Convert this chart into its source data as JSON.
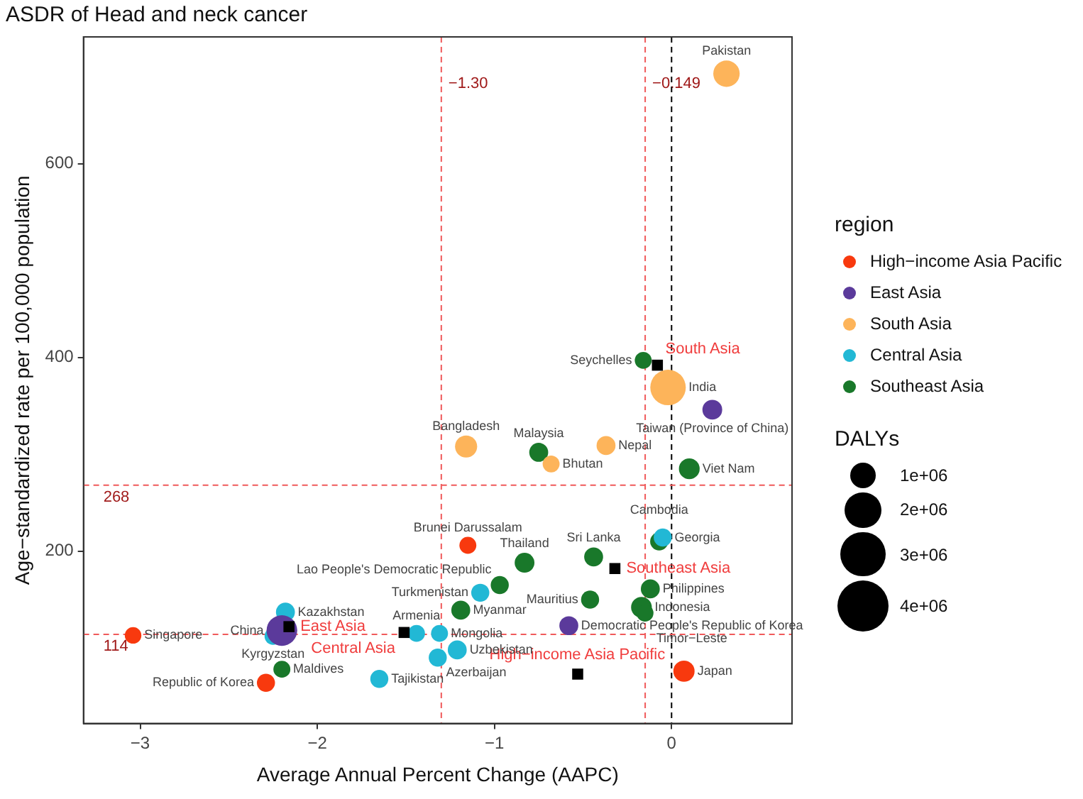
{
  "chart_data": {
    "type": "bubble",
    "title": "ASDR of Head and neck cancer",
    "xlabel": "Average Annual Percent Change (AAPC)",
    "ylabel": "Age−standardized rate per 100,000 population",
    "legend_title": "region",
    "legend": "right",
    "xlim": [
      -3.32,
      0.68
    ],
    "xticks": [
      {
        "value": -3,
        "label": "−3"
      },
      {
        "value": -2,
        "label": "−2"
      },
      {
        "value": -1,
        "label": "−1"
      },
      0
    ],
    "ylim": [
      22,
      731
    ],
    "yticks": [
      200,
      400,
      600
    ],
    "size_legend": [
      {
        "value": 1000000,
        "label": "1e+06"
      },
      {
        "value": 2000000,
        "label": "2e+06"
      },
      {
        "value": 3000000,
        "label": "3e+06"
      },
      {
        "value": 4000000,
        "label": "4e+06"
      }
    ],
    "annotations": [
      "DALYs"
    ],
    "ref_lines": [
      {
        "axis": "x",
        "value": -1.3,
        "label": "−1.30",
        "color": "#f0595a",
        "line_style": "dashed"
      },
      {
        "axis": "x",
        "value": -0.149,
        "label": "−0.149",
        "color": "#f0595a",
        "line_style": "dashed"
      },
      {
        "axis": "x",
        "value": 0,
        "label": null,
        "color": "#000000",
        "line_style": "dashed"
      },
      {
        "axis": "y",
        "value": 268,
        "label": "268",
        "color": "#f0595a",
        "line_style": "dashed"
      },
      {
        "axis": "y",
        "value": 114,
        "label": "114",
        "color": "#f0595a",
        "line_style": "dashed"
      }
    ],
    "series": [
      {
        "name": "High−income Asia Pacific",
        "color": "#f8390e",
        "x": [
          -3.04,
          -2.29,
          -1.15,
          0.07
        ],
        "values": [
          113,
          64,
          206,
          76
        ],
        "sizes": [
          420000,
          500000,
          440000,
          690000
        ],
        "value_labels": [
          "Singapore",
          "Republic of Korea",
          "Brunei Darussalam",
          "Japan"
        ]
      },
      {
        "name": "East Asia",
        "color": "#5b3a9b",
        "x": [
          -2.2,
          -0.58,
          0.23
        ],
        "values": [
          118,
          123,
          346
        ],
        "sizes": [
          1440000,
          550000,
          600000
        ],
        "value_labels": [
          "China",
          "Democratic People's Republic of Korea",
          "Taiwan (Province of China)"
        ]
      },
      {
        "name": "South Asia",
        "color": "#fdb45a",
        "x": [
          0.31,
          -0.02,
          -1.16,
          -0.37,
          -0.68
        ],
        "values": [
          693,
          369,
          308,
          309,
          290
        ],
        "sizes": [
          1070000,
          1930000,
          750000,
          550000,
          440000
        ],
        "value_labels": [
          "Pakistan",
          "India",
          "Bangladesh",
          "Nepal",
          "Bhutan"
        ]
      },
      {
        "name": "Central Asia",
        "color": "#22b8d5",
        "x": [
          -2.18,
          -2.25,
          -1.65,
          -1.44,
          -1.31,
          -1.32,
          -1.21,
          -1.08,
          -0.05
        ],
        "values": [
          137,
          112,
          68,
          115,
          115,
          90,
          98,
          157,
          214
        ],
        "sizes": [
          550000,
          440000,
          500000,
          440000,
          440000,
          500000,
          550000,
          500000,
          500000
        ],
        "value_labels": [
          "Kazakhstan",
          "Kyrgyzstan",
          "Tajikistan",
          "Armenia",
          "Mongolia",
          "Azerbaijan",
          "Uzbekistan",
          "Turkmenistan",
          "Georgia"
        ]
      },
      {
        "name": "Southeast Asia",
        "color": "#19782a",
        "x": [
          -0.16,
          0.1,
          -0.75,
          -0.83,
          -0.97,
          -1.19,
          -2.2,
          -0.44,
          -0.07,
          -0.12,
          -0.46,
          -0.17,
          -0.15
        ],
        "values": [
          397,
          285,
          302,
          188,
          165,
          139,
          78,
          194,
          210,
          161,
          150,
          142,
          136
        ],
        "sizes": [
          440000,
          660000,
          550000,
          600000,
          500000,
          550000,
          440000,
          550000,
          500000,
          550000,
          500000,
          660000,
          440000
        ],
        "value_labels": [
          "Seychelles",
          "Viet Nam",
          "Malaysia",
          "Thailand",
          "Lao People's Democratic Republic",
          "Myanmar",
          "Maldives",
          "Sri Lanka",
          "Cambodia",
          "Philippines",
          "Mauritius",
          "Indonesia",
          "Timor−Leste"
        ]
      },
      {
        "type": "scatter",
        "marker": "square",
        "color": "#000000",
        "x": [
          -0.53,
          -2.16,
          -0.08,
          -1.51,
          -0.32
        ],
        "values": [
          73,
          122,
          392,
          116,
          182
        ],
        "value_labels": [
          "High−income Asia Pacific",
          "East Asia",
          "South Asia",
          "Central Asia",
          "Southeast Asia"
        ]
      }
    ]
  }
}
